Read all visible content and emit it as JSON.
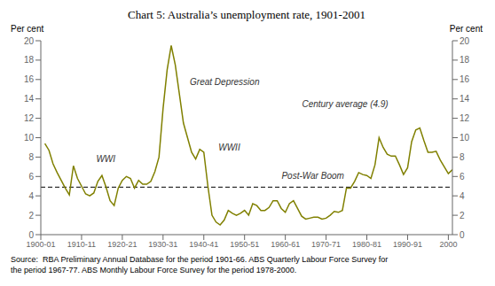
{
  "chart_data": {
    "type": "line",
    "title": "Chart 5:  Australia’s unemployment rate, 1901-2001",
    "ylabel": "Per cent",
    "y2label": "Per cent",
    "source": "Source:  RBA Preliminary Annual Database for the period 1901-66. ABS Quarterly Labour Force Survey for\nthe period 1967-77. ABS Monthly Labour Force Survey for the period 1978-2000.",
    "color": "#808000",
    "grid": false,
    "century_average": 4.9,
    "xlim": [
      1900,
      2001
    ],
    "xticks": [
      {
        "value": 1900,
        "label": "1900-01"
      },
      {
        "value": 1910,
        "label": "1910-11"
      },
      {
        "value": 1920,
        "label": "1920-21"
      },
      {
        "value": 1930,
        "label": "1930-31"
      },
      {
        "value": 1940,
        "label": "1940-41"
      },
      {
        "value": 1950,
        "label": "1950-51"
      },
      {
        "value": 1960,
        "label": "1960-61"
      },
      {
        "value": 1970,
        "label": "1970-71"
      },
      {
        "value": 1980,
        "label": "1980-81"
      },
      {
        "value": 1990,
        "label": "1990-91"
      },
      {
        "value": 2000,
        "label": "2000"
      }
    ],
    "ylim": [
      0,
      20
    ],
    "yticks": [
      0,
      2,
      4,
      6,
      8,
      10,
      12,
      14,
      16,
      18,
      20
    ],
    "y2lim": [
      0,
      20
    ],
    "y2ticks": [
      0,
      2,
      4,
      6,
      8,
      10,
      12,
      14,
      16,
      18,
      20
    ],
    "annotations": [
      {
        "text": "WWI",
        "x": 1912.5,
        "y": 7.8
      },
      {
        "text": "Great Depression",
        "x": 1935.5,
        "y": 15.8
      },
      {
        "text": "WWII",
        "x": 1942.5,
        "y": 9.0
      },
      {
        "text": "Post-War Boom",
        "x": 1958.0,
        "y": 6.1
      },
      {
        "text": "Century average (4.9)",
        "x": 1963,
        "y": 13.5
      }
    ],
    "x": [
      1901,
      1902,
      1903,
      1904,
      1905,
      1906,
      1907,
      1908,
      1909,
      1910,
      1911,
      1912,
      1913,
      1914,
      1915,
      1916,
      1917,
      1918,
      1919,
      1920,
      1921,
      1922,
      1923,
      1924,
      1925,
      1926,
      1927,
      1928,
      1929,
      1930,
      1931,
      1932,
      1933,
      1934,
      1935,
      1936,
      1937,
      1938,
      1939,
      1940,
      1941,
      1942,
      1943,
      1944,
      1945,
      1946,
      1947,
      1948,
      1949,
      1950,
      1951,
      1952,
      1953,
      1954,
      1955,
      1956,
      1957,
      1958,
      1959,
      1960,
      1961,
      1962,
      1963,
      1964,
      1965,
      1966,
      1967,
      1968,
      1969,
      1970,
      1971,
      1972,
      1973,
      1974,
      1975,
      1976,
      1977,
      1978,
      1979,
      1980,
      1981,
      1982,
      1983,
      1984,
      1985,
      1986,
      1987,
      1988,
      1989,
      1990,
      1991,
      1992,
      1993,
      1994,
      1995,
      1996,
      1997,
      1998,
      1999,
      2000,
      2001
    ],
    "values": [
      9.4,
      8.7,
      7.3,
      6.4,
      5.6,
      4.8,
      4.1,
      7.1,
      5.8,
      5.0,
      4.2,
      4.0,
      4.3,
      5.5,
      6.1,
      4.9,
      3.5,
      3.0,
      4.8,
      5.6,
      6.0,
      5.8,
      4.8,
      5.6,
      5.2,
      5.2,
      5.5,
      6.5,
      8.0,
      13.0,
      17.0,
      19.5,
      17.5,
      14.5,
      11.5,
      10.0,
      8.5,
      7.8,
      8.8,
      8.5,
      5.0,
      2.0,
      1.3,
      1.0,
      1.5,
      2.5,
      2.2,
      2.0,
      2.2,
      2.5,
      2.0,
      3.2,
      3.0,
      2.5,
      2.5,
      2.8,
      3.5,
      3.5,
      2.7,
      2.3,
      3.2,
      3.5,
      2.7,
      1.9,
      1.6,
      1.7,
      1.8,
      1.8,
      1.6,
      1.7,
      2.0,
      2.4,
      2.3,
      2.5,
      4.8,
      4.8,
      5.5,
      6.4,
      6.2,
      6.1,
      5.8,
      7.2,
      10.0,
      9.0,
      8.3,
      8.1,
      8.1,
      7.2,
      6.2,
      6.9,
      9.6,
      10.8,
      11.0,
      9.7,
      8.5,
      8.5,
      8.6,
      7.7,
      7.0,
      6.3,
      6.7
    ]
  }
}
